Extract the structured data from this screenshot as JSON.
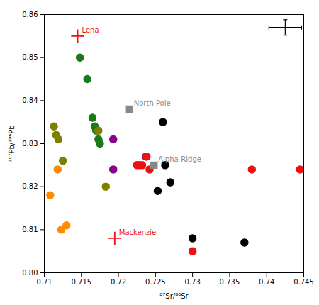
{
  "chart_data": {
    "type": "scatter",
    "xlabel": "⁸⁷Sr/⁸⁶Sr",
    "ylabel": "²⁰⁷Pb/²⁰⁶Pb",
    "xlim": [
      0.71,
      0.745
    ],
    "ylim": [
      0.8,
      0.86
    ],
    "xticks": [
      0.71,
      0.715,
      0.72,
      0.725,
      0.73,
      0.735,
      0.74,
      0.745
    ],
    "yticks": [
      {
        "value": 0.8,
        "label": "0.80"
      },
      0.81,
      0.82,
      0.83,
      0.84,
      0.85,
      0.86
    ],
    "grid": false,
    "series": [
      {
        "color": "#1a7a1a",
        "marker": "circle",
        "x": [
          0.7148,
          0.7158,
          0.7165,
          0.7168,
          0.717,
          0.7173,
          0.7175
        ],
        "y": [
          0.85,
          0.845,
          0.836,
          0.834,
          0.833,
          0.831,
          0.83
        ]
      },
      {
        "color": "#808000",
        "marker": "circle",
        "x": [
          0.7113,
          0.7116,
          0.7119,
          0.7125,
          0.7173,
          0.7183
        ],
        "y": [
          0.834,
          0.832,
          0.831,
          0.826,
          0.833,
          0.82
        ]
      },
      {
        "color": "#FF8C00",
        "marker": "circle",
        "x": [
          0.7108,
          0.7118,
          0.7123,
          0.713
        ],
        "y": [
          0.818,
          0.824,
          0.81,
          0.811
        ]
      },
      {
        "color": "#8B008B",
        "marker": "circle",
        "x": [
          0.7193,
          0.7193,
          0.7237
        ],
        "y": [
          0.831,
          0.824,
          0.827
        ]
      },
      {
        "color": "#EE1111",
        "marker": "circle",
        "x": [
          0.7238,
          0.7232,
          0.7228,
          0.7225,
          0.7242,
          0.73,
          0.738,
          0.7445
        ],
        "y": [
          0.827,
          0.825,
          0.825,
          0.825,
          0.824,
          0.805,
          0.824,
          0.824
        ]
      },
      {
        "color": "#000000",
        "marker": "circle",
        "x": [
          0.726,
          0.7263,
          0.7253,
          0.727,
          0.73,
          0.737
        ],
        "y": [
          0.835,
          0.825,
          0.819,
          0.821,
          0.808,
          0.807
        ]
      },
      {
        "color": "#888888",
        "marker": "square",
        "x": [
          0.7215,
          0.7248
        ],
        "y": [
          0.838,
          0.825
        ],
        "labels": [
          "North Pole",
          "Alpha-Ridge"
        ]
      },
      {
        "color": "#EE1111",
        "marker": "plus",
        "x": [
          0.7145,
          0.7195
        ],
        "y": [
          0.855,
          0.808
        ],
        "labels": [
          "Lena",
          "Mackenzie"
        ]
      }
    ],
    "error_bars": [
      {
        "x": 0.7425,
        "y": 0.857,
        "xerr": 0.0022,
        "yerr": 0.0018,
        "color": "#000000"
      }
    ]
  }
}
